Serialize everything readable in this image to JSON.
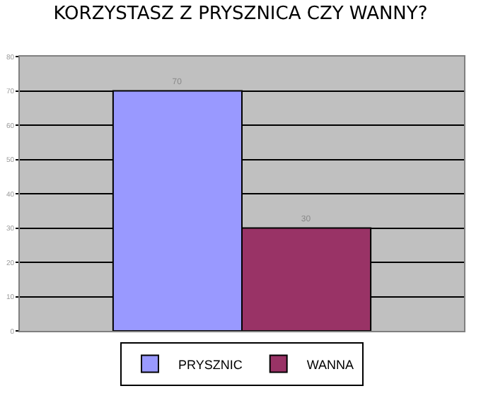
{
  "chart_data": {
    "type": "bar",
    "title": "KORZYSTASZ Z PRYSZNICA CZY WANNY?",
    "categories": [
      null
    ],
    "series": [
      {
        "name": "PRYSZNIC",
        "color": "#9999ff",
        "values": [
          70
        ]
      },
      {
        "name": "WANNA",
        "color": "#993366",
        "values": [
          30
        ]
      }
    ],
    "ylim": [
      0,
      80
    ],
    "yticks": [
      0,
      10,
      20,
      30,
      40,
      50,
      60,
      70,
      80
    ],
    "grid": "y",
    "legend": "bottom",
    "data_labels": true
  }
}
